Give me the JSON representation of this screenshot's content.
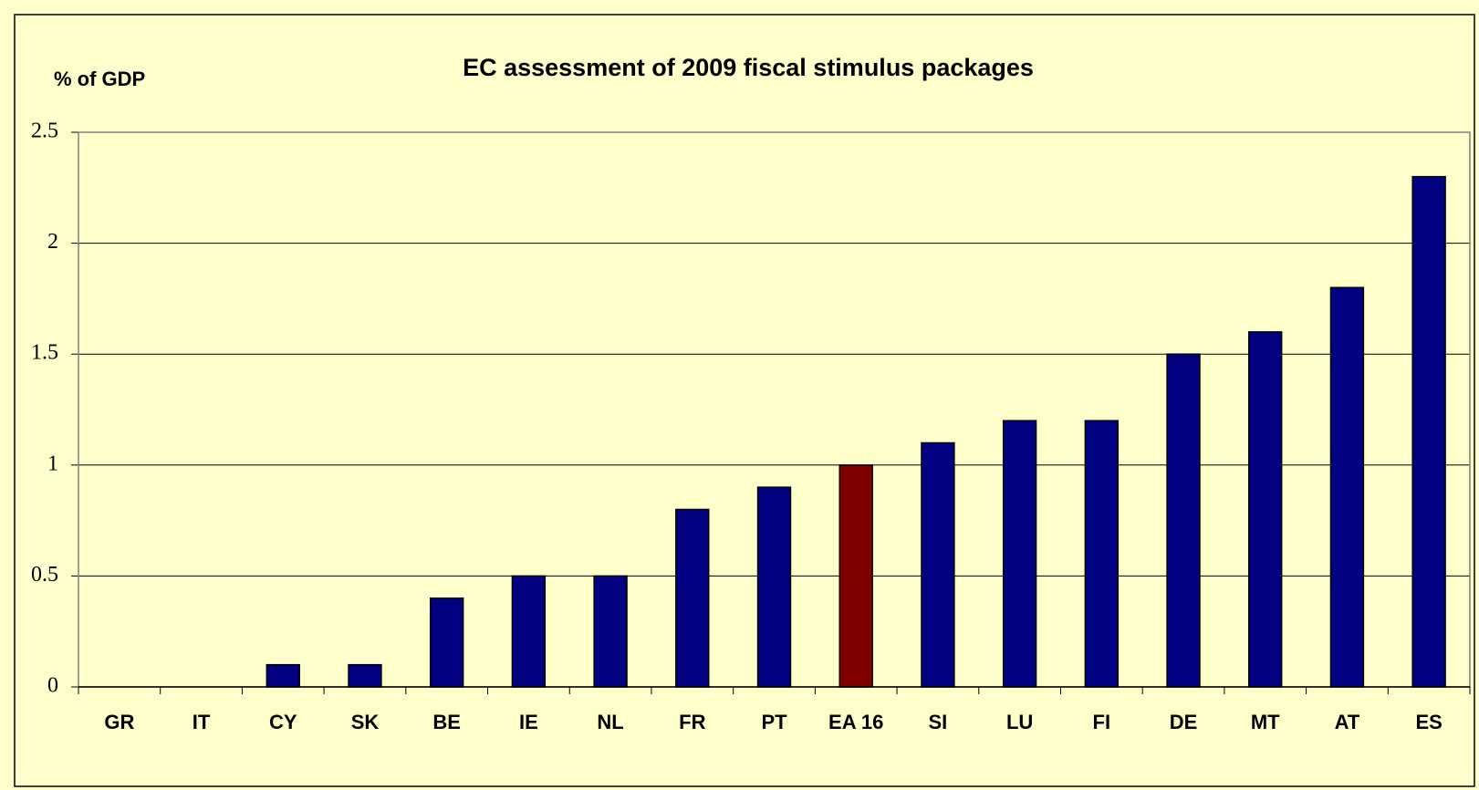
{
  "chart_data": {
    "type": "bar",
    "title": "EC assessment of 2009 fiscal stimulus packages",
    "y_label": "% of GDP",
    "categories": [
      "GR",
      "IT",
      "CY",
      "SK",
      "BE",
      "IE",
      "NL",
      "FR",
      "PT",
      "EA 16",
      "SI",
      "LU",
      "FI",
      "DE",
      "MT",
      "AT",
      "ES"
    ],
    "values": [
      0,
      0,
      0.1,
      0.1,
      0.4,
      0.5,
      0.5,
      0.8,
      0.9,
      1.0,
      1.1,
      1.2,
      1.2,
      1.5,
      1.6,
      1.8,
      2.3
    ],
    "colors": [
      "#000080",
      "#000080",
      "#000080",
      "#000080",
      "#000080",
      "#000080",
      "#000080",
      "#000080",
      "#000080",
      "#800000",
      "#000080",
      "#000080",
      "#000080",
      "#000080",
      "#000080",
      "#000080",
      "#000080"
    ],
    "ylim": [
      0,
      2.5
    ],
    "yticks": [
      0,
      0.5,
      1,
      1.5,
      2,
      2.5
    ],
    "grid": true
  }
}
